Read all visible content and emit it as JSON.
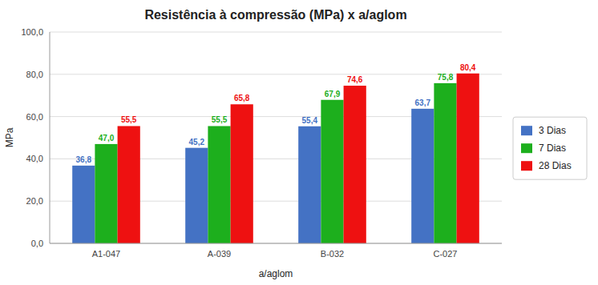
{
  "chart_data": {
    "type": "bar",
    "title": "Resistência à compressão (MPa) x a/aglom",
    "xlabel": "a/aglom",
    "ylabel": "MPa",
    "categories": [
      "A1-047",
      "A-039",
      "B-032",
      "C-027"
    ],
    "series": [
      {
        "name": "3 Dias",
        "color": "#4472C4",
        "values": [
          36.8,
          45.2,
          55.4,
          63.7
        ],
        "value_labels": [
          "36,8",
          "45,2",
          "55,4",
          "63,7"
        ]
      },
      {
        "name": "7 Dias",
        "color": "#1DAF1D",
        "values": [
          47.0,
          55.5,
          67.9,
          75.8
        ],
        "value_labels": [
          "47,0",
          "55,5",
          "67,9",
          "75,8"
        ]
      },
      {
        "name": "28 Dias",
        "color": "#EE1111",
        "values": [
          55.5,
          65.8,
          74.6,
          80.4
        ],
        "value_labels": [
          "55,5",
          "65,8",
          "74,6",
          "80,4"
        ]
      }
    ],
    "ylim": [
      0,
      100
    ],
    "yticks": [
      {
        "value": 0,
        "label": "0,0"
      },
      {
        "value": 20,
        "label": "20,0"
      },
      {
        "value": 40,
        "label": "40,0"
      },
      {
        "value": 60,
        "label": "60,0"
      },
      {
        "value": 80,
        "label": "80,0"
      },
      {
        "value": 100,
        "label": "100,0"
      }
    ],
    "grid": true,
    "legend": "right",
    "data_labels": true
  }
}
